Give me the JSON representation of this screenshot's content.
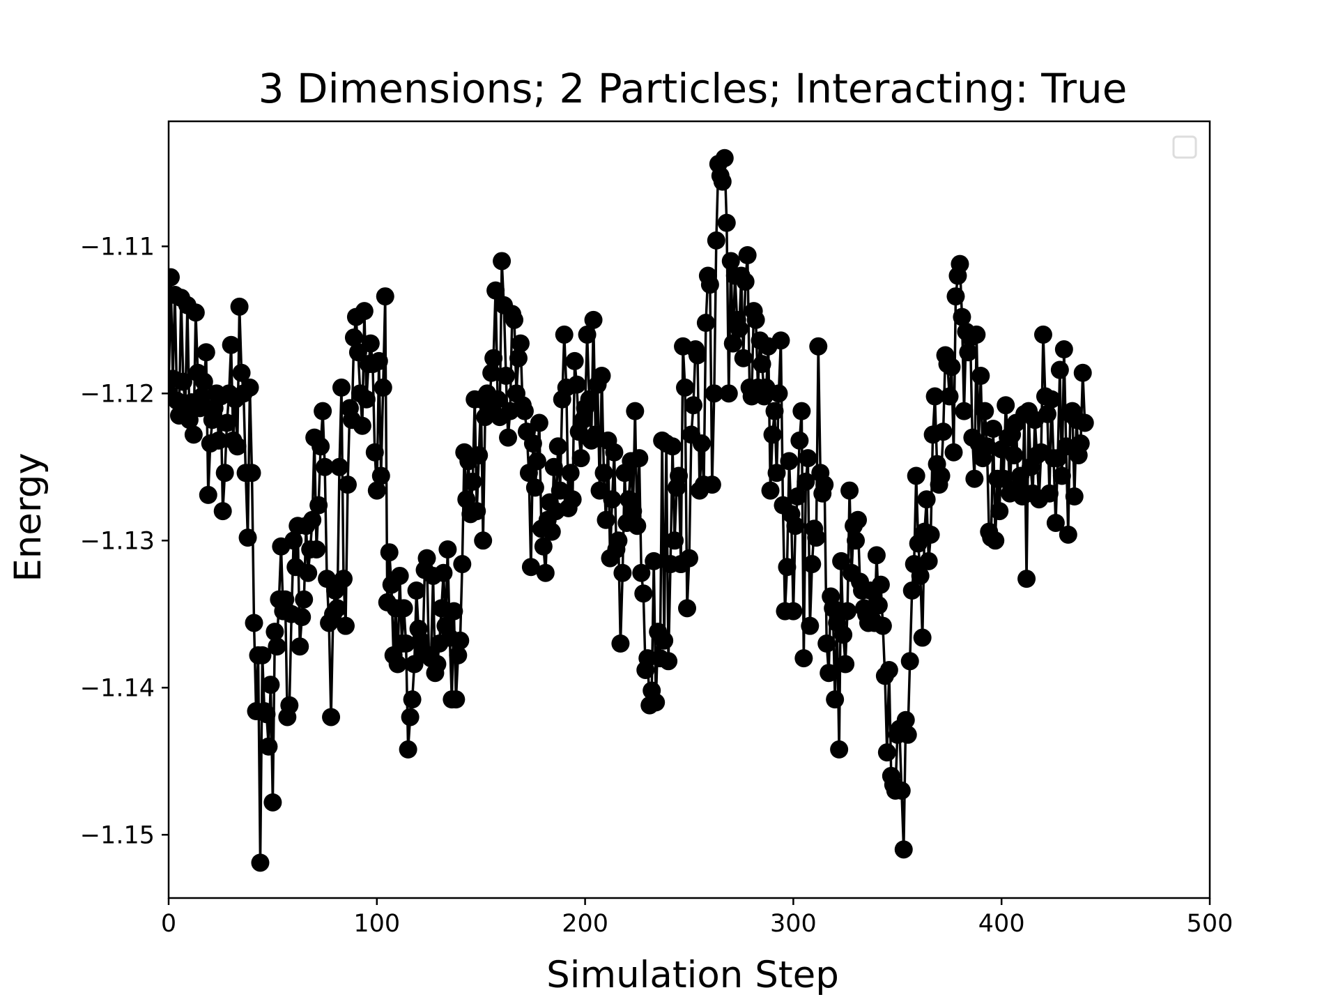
{
  "chart_data": {
    "type": "line",
    "title": "3 Dimensions; 2 Particles; Interacting: True",
    "xlabel": "Simulation Step",
    "ylabel": "Energy",
    "xlim": [
      0,
      500
    ],
    "ylim": [
      -1.1543,
      -1.1015
    ],
    "xticks": [
      0,
      100,
      200,
      300,
      400,
      500
    ],
    "xtick_labels": [
      "0",
      "100",
      "200",
      "300",
      "400",
      "500"
    ],
    "yticks": [
      -1.15,
      -1.14,
      -1.13,
      -1.12,
      -1.11
    ],
    "ytick_labels": [
      "−1.15",
      "−1.14",
      "−1.13",
      "−1.12",
      "−1.11"
    ],
    "grid": false,
    "legend": {
      "placement": "upper right",
      "entries": []
    },
    "series": [
      {
        "color": "#000000",
        "marker": "circle",
        "x_start": 0,
        "x_step": 1,
        "values": [
          -1.12,
          -1.1121,
          -1.119,
          -1.1133,
          -1.1205,
          -1.1215,
          -1.1135,
          -1.1192,
          -1.1208,
          -1.114,
          -1.1218,
          -1.1206,
          -1.1228,
          -1.1145,
          -1.1186,
          -1.121,
          -1.1202,
          -1.1192,
          -1.1172,
          -1.1269,
          -1.1234,
          -1.1218,
          -1.121,
          -1.12,
          -1.1232,
          -1.1202,
          -1.128,
          -1.1254,
          -1.122,
          -1.12,
          -1.1167,
          -1.1232,
          -1.1204,
          -1.1236,
          -1.1141,
          -1.1186,
          -1.12,
          -1.1254,
          -1.1298,
          -1.1196,
          -1.1254,
          -1.1356,
          -1.1416,
          -1.1378,
          -1.1519,
          -1.1378,
          -1.1416,
          -1.1418,
          -1.144,
          -1.1398,
          -1.1478,
          -1.1362,
          -1.1372,
          -1.134,
          -1.1304,
          -1.1348,
          -1.134,
          -1.142,
          -1.1412,
          -1.135,
          -1.13,
          -1.1318,
          -1.129,
          -1.1372,
          -1.1352,
          -1.134,
          -1.129,
          -1.1322,
          -1.1306,
          -1.1286,
          -1.123,
          -1.1306,
          -1.1276,
          -1.1236,
          -1.1212,
          -1.125,
          -1.1326,
          -1.1356,
          -1.142,
          -1.135,
          -1.1334,
          -1.1346,
          -1.125,
          -1.1196,
          -1.1326,
          -1.1358,
          -1.1262,
          -1.121,
          -1.1218,
          -1.1162,
          -1.1148,
          -1.1172,
          -1.12,
          -1.1222,
          -1.1144,
          -1.1204,
          -1.118,
          -1.1166,
          -1.118,
          -1.124,
          -1.1266,
          -1.1178,
          -1.1256,
          -1.1196,
          -1.1134,
          -1.1342,
          -1.1308,
          -1.133,
          -1.1378,
          -1.1346,
          -1.1384,
          -1.1324,
          -1.137,
          -1.1346,
          -1.137,
          -1.1442,
          -1.142,
          -1.1408,
          -1.1384,
          -1.1334,
          -1.136,
          -1.1368,
          -1.1376,
          -1.132,
          -1.1312,
          -1.1378,
          -1.138,
          -1.1324,
          -1.139,
          -1.1384,
          -1.137,
          -1.1346,
          -1.1322,
          -1.1358,
          -1.1306,
          -1.1366,
          -1.1408,
          -1.1348,
          -1.1408,
          -1.1378,
          -1.1368,
          -1.1316,
          -1.124,
          -1.1272,
          -1.1246,
          -1.1282,
          -1.126,
          -1.1204,
          -1.128,
          -1.1242,
          -1.1204,
          -1.13,
          -1.1216,
          -1.12,
          -1.121,
          -1.1186,
          -1.1176,
          -1.113,
          -1.1204,
          -1.1216,
          -1.111,
          -1.114,
          -1.1188,
          -1.123,
          -1.1212,
          -1.1146,
          -1.115,
          -1.12,
          -1.1176,
          -1.1166,
          -1.1208,
          -1.1212,
          -1.1226,
          -1.1254,
          -1.1318,
          -1.1234,
          -1.1264,
          -1.1246,
          -1.122,
          -1.1292,
          -1.1304,
          -1.1322,
          -1.1286,
          -1.1274,
          -1.1294,
          -1.125,
          -1.128,
          -1.1236,
          -1.1266,
          -1.1204,
          -1.116,
          -1.1196,
          -1.1278,
          -1.1254,
          -1.1272,
          -1.1178,
          -1.1194,
          -1.1226,
          -1.1244,
          -1.1218,
          -1.121,
          -1.116,
          -1.1204,
          -1.1232,
          -1.115,
          -1.1228,
          -1.1194,
          -1.1266,
          -1.1188,
          -1.1254,
          -1.1286,
          -1.1232,
          -1.1312,
          -1.1272,
          -1.124,
          -1.1306,
          -1.13,
          -1.137,
          -1.1322,
          -1.1254,
          -1.1288,
          -1.1272,
          -1.1246,
          -1.128,
          -1.1212,
          -1.129,
          -1.1244,
          -1.1322,
          -1.1336,
          -1.1388,
          -1.138,
          -1.1412,
          -1.1402,
          -1.1314,
          -1.141,
          -1.1362,
          -1.138,
          -1.1232,
          -1.1368,
          -1.1234,
          -1.1382,
          -1.1316,
          -1.1236,
          -1.13,
          -1.1264,
          -1.1256,
          -1.1316,
          -1.1168,
          -1.1196,
          -1.1346,
          -1.1312,
          -1.1228,
          -1.1208,
          -1.117,
          -1.1174,
          -1.1266,
          -1.1234,
          -1.1262,
          -1.1152,
          -1.112,
          -1.1126,
          -1.1262,
          -1.12,
          -1.1096,
          -1.1044,
          -1.1052,
          -1.1056,
          -1.104,
          -1.1084,
          -1.12,
          -1.111,
          -1.1166,
          -1.112,
          -1.115,
          -1.1156,
          -1.112,
          -1.1176,
          -1.1124,
          -1.1106,
          -1.1196,
          -1.1202,
          -1.1144,
          -1.115,
          -1.1196,
          -1.1164,
          -1.118,
          -1.1202,
          -1.1196,
          -1.1168,
          -1.1266,
          -1.1228,
          -1.1212,
          -1.1254,
          -1.12,
          -1.1164,
          -1.1276,
          -1.1348,
          -1.1318,
          -1.1246,
          -1.1282,
          -1.1348,
          -1.129,
          -1.127,
          -1.1232,
          -1.1212,
          -1.138,
          -1.126,
          -1.1244,
          -1.1358,
          -1.1316,
          -1.1292,
          -1.1298,
          -1.1168,
          -1.1254,
          -1.1268,
          -1.1262,
          -1.137,
          -1.139,
          -1.1338,
          -1.1346,
          -1.1408,
          -1.1356,
          -1.1442,
          -1.1314,
          -1.1364,
          -1.1384,
          -1.1348,
          -1.1266,
          -1.1322,
          -1.129,
          -1.13,
          -1.1286,
          -1.1328,
          -1.1334,
          -1.1346,
          -1.135,
          -1.1356,
          -1.1334,
          -1.1354,
          -1.1356,
          -1.131,
          -1.1344,
          -1.133,
          -1.1358,
          -1.1392,
          -1.1444,
          -1.1388,
          -1.146,
          -1.1466,
          -1.147,
          -1.1432,
          -1.1428,
          -1.147,
          -1.151,
          -1.1422,
          -1.1432,
          -1.1382,
          -1.1334,
          -1.1316,
          -1.1256,
          -1.1302,
          -1.1324,
          -1.1366,
          -1.1294,
          -1.1272,
          -1.1314,
          -1.1296,
          -1.1228,
          -1.1202,
          -1.1248,
          -1.1262,
          -1.1256,
          -1.1226,
          -1.1174,
          -1.118,
          -1.1202,
          -1.1182,
          -1.124,
          -1.1134,
          -1.112,
          -1.1112,
          -1.1148,
          -1.1212,
          -1.1158,
          -1.1172,
          -1.1162,
          -1.123,
          -1.1258,
          -1.116,
          -1.1234,
          -1.1188,
          -1.1244,
          -1.1212,
          -1.1236,
          -1.1294,
          -1.1298,
          -1.1224,
          -1.13,
          -1.1258,
          -1.128,
          -1.1238,
          -1.1258,
          -1.1208,
          -1.123,
          -1.1268,
          -1.1228,
          -1.1242,
          -1.122,
          -1.1264,
          -1.1256,
          -1.127,
          -1.1214,
          -1.1326,
          -1.1212,
          -1.125,
          -1.1268,
          -1.1218,
          -1.1242,
          -1.1272,
          -1.124,
          -1.116,
          -1.1202,
          -1.1214,
          -1.1268,
          -1.1204,
          -1.1244,
          -1.1288,
          -1.1244,
          -1.1184,
          -1.1256,
          -1.117,
          -1.1236,
          -1.1296,
          -1.1214,
          -1.1212,
          -1.127,
          -1.1218,
          -1.1242,
          -1.1234,
          -1.1186,
          -1.122
        ]
      }
    ]
  }
}
